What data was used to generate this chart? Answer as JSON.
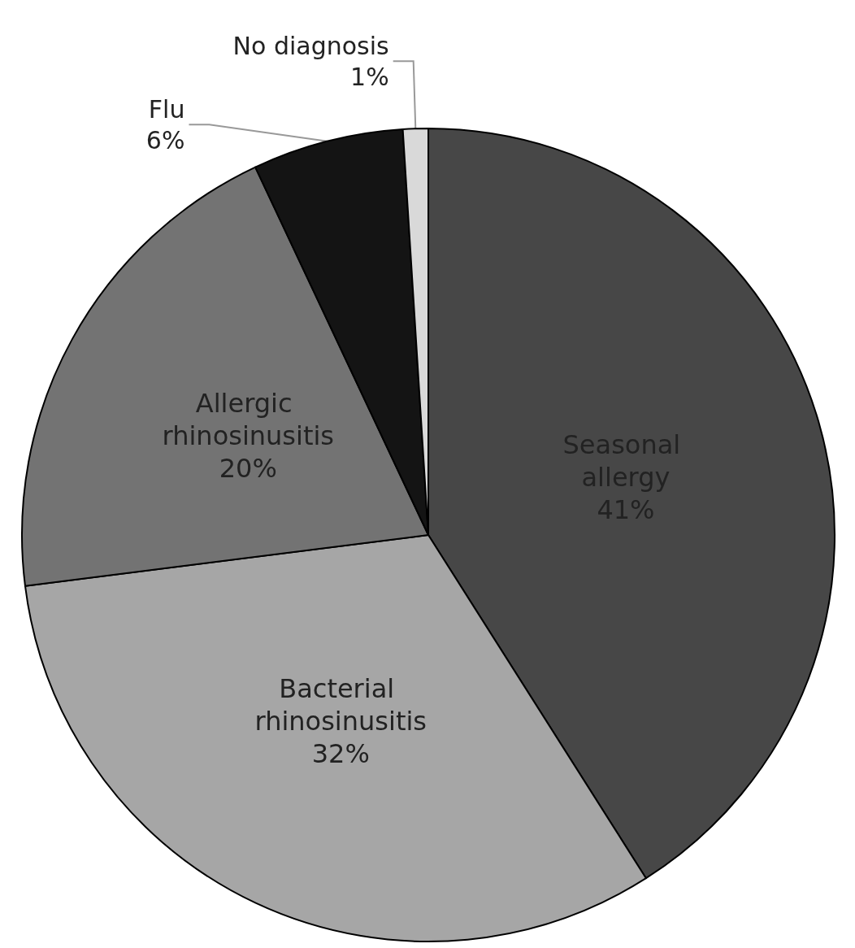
{
  "chart_data": {
    "type": "pie",
    "categories": [
      "Seasonal allergy",
      "Bacterial rhinosinusitis",
      "Allergic rhinosinusitis",
      "Flu",
      "No diagnosis"
    ],
    "values": [
      41,
      32,
      20,
      6,
      1
    ],
    "value_labels": [
      "41%",
      "32%",
      "20%",
      "6%",
      "1%"
    ],
    "colors": [
      "#474747",
      "#a6a6a6",
      "#737373",
      "#141414",
      "#d9d9d9"
    ],
    "legend": false
  }
}
